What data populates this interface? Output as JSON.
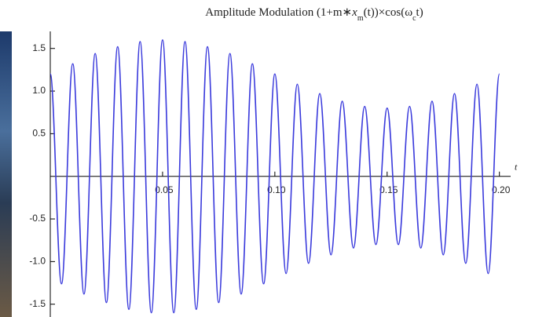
{
  "chart_data": {
    "type": "line",
    "title": [
      "Amplitude Modulation (1+m∗",
      "x",
      "m",
      "(t))×cos(ω",
      "c",
      "t)"
    ],
    "x_label": "t",
    "x": [
      0,
      0.005,
      0.01,
      0.015,
      0.02,
      0.025,
      0.03,
      0.035,
      0.04,
      0.045,
      0.05,
      0.055,
      0.06,
      0.065,
      0.07,
      0.075,
      0.08,
      0.085,
      0.09,
      0.095,
      0.1,
      0.105,
      0.11,
      0.115,
      0.12,
      0.125,
      0.13,
      0.135,
      0.14,
      0.145,
      0.15,
      0.155,
      0.16,
      0.165,
      0.17,
      0.175,
      0.18,
      0.185,
      0.19,
      0.195,
      0.2
    ],
    "series": [
      {
        "color": "#3b3bdc",
        "values": [
          1.2,
          -1.26,
          1.32,
          -1.38,
          1.44,
          -1.48,
          1.52,
          -1.56,
          1.58,
          -1.6,
          1.6,
          -1.6,
          1.58,
          -1.56,
          1.52,
          -1.48,
          1.44,
          -1.38,
          1.32,
          -1.26,
          1.2,
          -1.14,
          1.08,
          -1.02,
          0.97,
          -0.92,
          0.88,
          -0.84,
          0.82,
          -0.8,
          0.8,
          -0.8,
          0.82,
          -0.84,
          0.88,
          -0.92,
          0.97,
          -1.02,
          1.08,
          -1.14,
          1.2
        ]
      }
    ],
    "xlim": [
      0,
      0.205
    ],
    "ylim": [
      -1.65,
      1.7
    ],
    "xticks": [
      0.05,
      {
        "value": 0.1,
        "label": "0.10"
      },
      0.15,
      {
        "value": 0.2,
        "label": "0.20"
      }
    ],
    "yticks": [
      1.5,
      {
        "value": 1,
        "label": "1.0"
      },
      0.5,
      -0.5,
      {
        "value": -1,
        "label": "-1.0"
      },
      -1.5
    ]
  }
}
